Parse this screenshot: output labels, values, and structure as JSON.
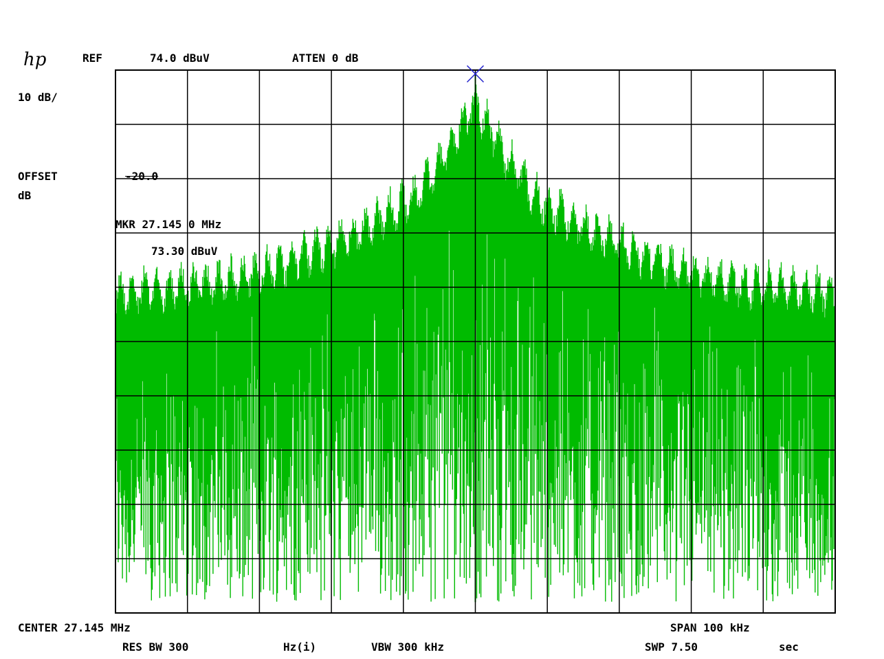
{
  "header": {
    "logo": "hp",
    "ref_label": "REF",
    "ref_value": "74.0 dBuV",
    "atten": "ATTEN 0 dB",
    "scale": "10 dB/",
    "offset_label": "OFFSET",
    "offset_unit": "dB",
    "offset_value": "-20.0"
  },
  "marker": {
    "freq": "MKR 27.145 0 MHz",
    "level": "73.30 dBuV"
  },
  "footer": {
    "center": "CENTER 27.145 MHz",
    "span": "SPAN 100 kHz",
    "res_bw": "RES BW 300",
    "res_bw_unit": "Hz(i)",
    "vbw": "VBW 300 kHz",
    "swp": "SWP 7.50",
    "swp_unit": "sec"
  },
  "colors": {
    "trace": "#00bb00",
    "grid": "#000000",
    "marker": "#2222cc"
  },
  "chart_data": {
    "type": "line",
    "x_unit": "MHz",
    "y_unit": "dBuV",
    "x_range": [
      27.095,
      27.195
    ],
    "y_range": [
      -26.0,
      74.0
    ],
    "grid": true,
    "divisions_x": 10,
    "divisions_y": 10,
    "marker": {
      "x": 27.145,
      "y": 73.3
    },
    "series": [
      {
        "trace": "swept spectrum (narrow center peak with comb sidebands)",
        "envelope_peaks": [
          {
            "x": 27.095,
            "y": 38
          },
          {
            "x": 27.11,
            "y": 40
          },
          {
            "x": 27.12,
            "y": 44
          },
          {
            "x": 27.13,
            "y": 50
          },
          {
            "x": 27.137,
            "y": 56
          },
          {
            "x": 27.142,
            "y": 66
          },
          {
            "x": 27.145,
            "y": 73.3
          },
          {
            "x": 27.148,
            "y": 66
          },
          {
            "x": 27.153,
            "y": 56
          },
          {
            "x": 27.16,
            "y": 50
          },
          {
            "x": 27.17,
            "y": 44
          },
          {
            "x": 27.18,
            "y": 40
          },
          {
            "x": 27.195,
            "y": 38
          }
        ],
        "floor_min": -24
      }
    ]
  }
}
